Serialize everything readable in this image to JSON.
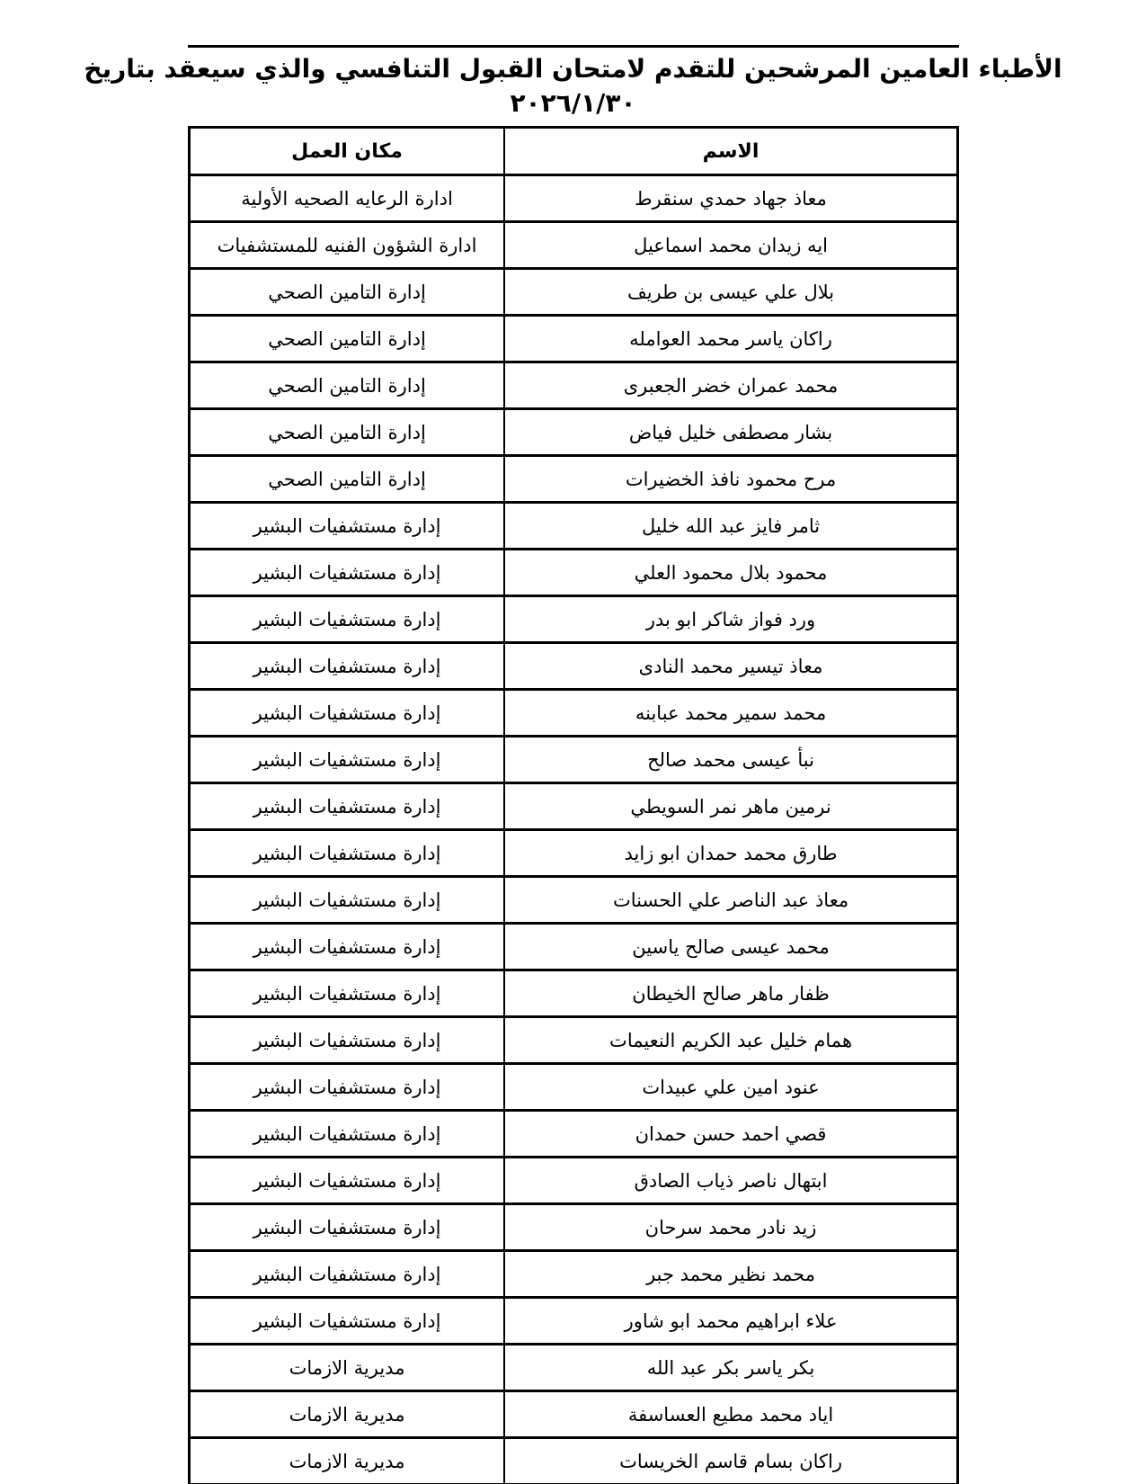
{
  "colors": {
    "text": "#000000",
    "background": "#ffffff",
    "border": "#000000"
  },
  "document": {
    "title_line1": "الأطباء العامين المرشحين للتقدم لامتحان القبول التنافسي والذي سيعقد بتاريخ",
    "title_date": "٢٠٢٦/١/٣٠"
  },
  "table": {
    "headers": {
      "name": "الاسم",
      "workplace": "مكان العمل"
    },
    "rows": [
      {
        "name": "معاذ جهاد حمدي سنقرط",
        "workplace": "ادارة الرعايه الصحيه الأولية"
      },
      {
        "name": "ايه زيدان محمد اسماعيل",
        "workplace": "ادارة الشؤون الفنيه للمستشفيات"
      },
      {
        "name": "بلال علي عيسى بن طريف",
        "workplace": "إدارة التامين الصحي"
      },
      {
        "name": "راكان ياسر محمد العوامله",
        "workplace": "إدارة التامين الصحي"
      },
      {
        "name": "محمد عمران خضر الجعبرى",
        "workplace": "إدارة التامين الصحي"
      },
      {
        "name": "بشار مصطفى خليل فياض",
        "workplace": "إدارة التامين الصحي"
      },
      {
        "name": "مرح محمود نافذ الخضيرات",
        "workplace": "إدارة التامين الصحي"
      },
      {
        "name": "ثامر فايز عبد الله خليل",
        "workplace": "إدارة مستشفيات البشير"
      },
      {
        "name": "محمود بلال محمود العلي",
        "workplace": "إدارة مستشفيات البشير"
      },
      {
        "name": "ورد فواز شاكر ابو بدر",
        "workplace": "إدارة مستشفيات البشير"
      },
      {
        "name": "معاذ تيسير محمد النادى",
        "workplace": "إدارة مستشفيات البشير"
      },
      {
        "name": "محمد سمير محمد عبابنه",
        "workplace": "إدارة مستشفيات البشير"
      },
      {
        "name": "نبأ عيسى محمد صالح",
        "workplace": "إدارة مستشفيات البشير"
      },
      {
        "name": "نرمين ماهر نمر السويطي",
        "workplace": "إدارة مستشفيات البشير"
      },
      {
        "name": "طارق محمد حمدان ابو زايد",
        "workplace": "إدارة مستشفيات البشير"
      },
      {
        "name": "معاذ عبد الناصر علي الحسنات",
        "workplace": "إدارة مستشفيات البشير"
      },
      {
        "name": "محمد عيسى صالح ياسين",
        "workplace": "إدارة مستشفيات البشير"
      },
      {
        "name": "ظفار ماهر صالح الخيطان",
        "workplace": "إدارة مستشفيات البشير"
      },
      {
        "name": "همام خليل عبد الكريم النعيمات",
        "workplace": "إدارة مستشفيات البشير"
      },
      {
        "name": "عنود امين علي عبيدات",
        "workplace": "إدارة مستشفيات البشير"
      },
      {
        "name": "قصي احمد حسن حمدان",
        "workplace": "إدارة مستشفيات البشير"
      },
      {
        "name": "ابتهال ناصر ذياب الصادق",
        "workplace": "إدارة مستشفيات البشير"
      },
      {
        "name": "زيد نادر محمد سرحان",
        "workplace": "إدارة مستشفيات البشير"
      },
      {
        "name": "محمد نظير محمد جبر",
        "workplace": "إدارة مستشفيات البشير"
      },
      {
        "name": "علاء ابراهيم محمد ابو شاور",
        "workplace": "إدارة مستشفيات البشير"
      },
      {
        "name": "بكر ياسر بكر عبد الله",
        "workplace": "مديرية الازمات"
      },
      {
        "name": "اياد محمد مطيع العساسفة",
        "workplace": "مديرية الازمات"
      },
      {
        "name": "راكان بسام قاسم الخريسات",
        "workplace": "مديرية الازمات"
      }
    ]
  }
}
